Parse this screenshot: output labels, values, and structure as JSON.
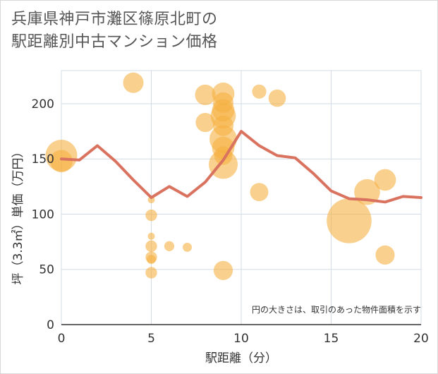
{
  "title_line1": "兵庫県神戸市灘区篠原北町の",
  "title_line2": "駅距離別中古マンション価格",
  "chart_data": {
    "type": "scatter",
    "xlabel": "駅距離（分）",
    "ylabel": "坪（3.3㎡）単価（万円）",
    "xlim": [
      0,
      20
    ],
    "ylim": [
      0,
      230
    ],
    "xticks": [
      0,
      5,
      10,
      15,
      20
    ],
    "yticks": [
      0,
      50,
      100,
      150,
      200
    ],
    "grid": true,
    "annotation": "円の大きさは、取引のあった物件面積を示す",
    "colors": {
      "bubble": "#f5b041",
      "line": "#d9725e",
      "grid": "#d3dce6"
    },
    "bubbles": [
      {
        "x": 0,
        "y": 153,
        "size": 60
      },
      {
        "x": 0,
        "y": 148,
        "size": 30
      },
      {
        "x": 4,
        "y": 219,
        "size": 25
      },
      {
        "x": 5,
        "y": 113,
        "size": 3
      },
      {
        "x": 5,
        "y": 99,
        "size": 8
      },
      {
        "x": 5,
        "y": 80,
        "size": 3
      },
      {
        "x": 5,
        "y": 71,
        "size": 8
      },
      {
        "x": 5,
        "y": 61,
        "size": 8
      },
      {
        "x": 5,
        "y": 59,
        "size": 5
      },
      {
        "x": 5,
        "y": 47,
        "size": 8
      },
      {
        "x": 6,
        "y": 71,
        "size": 6
      },
      {
        "x": 7,
        "y": 70,
        "size": 5
      },
      {
        "x": 8,
        "y": 208,
        "size": 25
      },
      {
        "x": 8,
        "y": 183,
        "size": 22
      },
      {
        "x": 9,
        "y": 209,
        "size": 30
      },
      {
        "x": 9,
        "y": 201,
        "size": 25
      },
      {
        "x": 9,
        "y": 194,
        "size": 30
      },
      {
        "x": 9,
        "y": 189,
        "size": 38
      },
      {
        "x": 9,
        "y": 180,
        "size": 25
      },
      {
        "x": 9,
        "y": 168,
        "size": 45
      },
      {
        "x": 9,
        "y": 160,
        "size": 30
      },
      {
        "x": 9,
        "y": 153,
        "size": 20
      },
      {
        "x": 9,
        "y": 145,
        "size": 50
      },
      {
        "x": 9,
        "y": 49,
        "size": 22
      },
      {
        "x": 11,
        "y": 211,
        "size": 12
      },
      {
        "x": 11,
        "y": 120,
        "size": 20
      },
      {
        "x": 12,
        "y": 205,
        "size": 18
      },
      {
        "x": 16,
        "y": 94,
        "size": 120
      },
      {
        "x": 17,
        "y": 120,
        "size": 40
      },
      {
        "x": 18,
        "y": 131,
        "size": 28
      },
      {
        "x": 18,
        "y": 63,
        "size": 22
      }
    ],
    "trend": {
      "x": [
        0,
        1,
        2,
        3,
        4,
        5,
        6,
        7,
        8,
        9,
        10,
        11,
        12,
        13,
        14,
        15,
        16,
        17,
        18,
        19,
        20
      ],
      "y": [
        150,
        149,
        162,
        148,
        131,
        115,
        125,
        116,
        129,
        149,
        175,
        162,
        153,
        151,
        137,
        121,
        114,
        113,
        111,
        116,
        115
      ]
    }
  }
}
